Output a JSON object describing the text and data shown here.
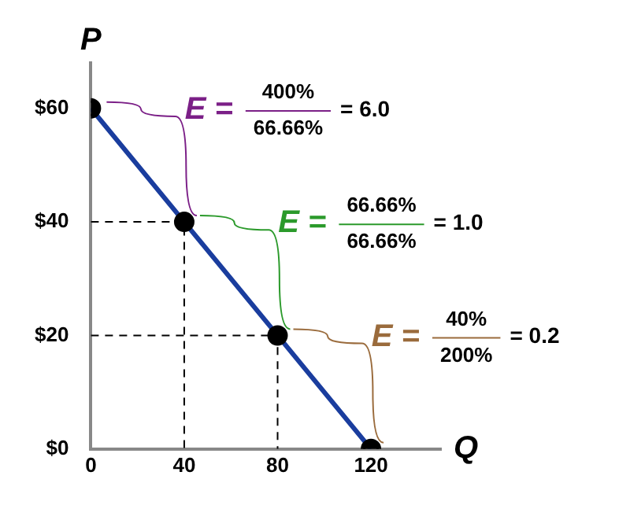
{
  "chart_data": {
    "type": "line",
    "xlabel": "Q",
    "ylabel": "P",
    "xlim": [
      0,
      150
    ],
    "ylim": [
      0,
      68
    ],
    "xticks": [
      0,
      40,
      80,
      120
    ],
    "yticks": [
      {
        "value": 0,
        "label": "$0"
      },
      {
        "value": 20,
        "label": "$20"
      },
      {
        "value": 40,
        "label": "$40"
      },
      {
        "value": 60,
        "label": "$60"
      }
    ],
    "grid": false,
    "legend": false,
    "series": [
      {
        "color": "#1a3d9e",
        "x": [
          0,
          40,
          80,
          120
        ],
        "values": [
          60,
          40,
          20,
          0
        ],
        "marker": "circle",
        "line_style": "solid"
      },
      {
        "color": "#000000",
        "x": [
          0,
          40,
          40
        ],
        "values": [
          40,
          40,
          0
        ],
        "marker": "none",
        "line_style": "dashed"
      },
      {
        "color": "#000000",
        "x": [
          0,
          80,
          80
        ],
        "values": [
          20,
          20,
          0
        ],
        "marker": "none",
        "line_style": "dashed"
      }
    ],
    "annotations": [
      {
        "text": "E =",
        "x": 20,
        "y": 50
      },
      "400%",
      "66.66%",
      "= 6.0",
      {
        "text": "E =",
        "x": 60,
        "y": 30
      },
      "66.66%",
      "66.66%",
      "= 1.0",
      {
        "text": "E =",
        "x": 100,
        "y": 10
      },
      "40%",
      "200%",
      "= 0.2"
    ]
  }
}
